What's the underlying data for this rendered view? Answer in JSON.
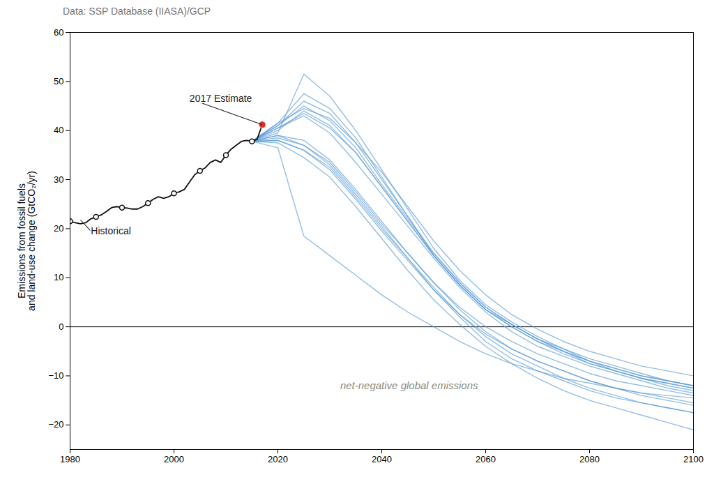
{
  "chart_data": {
    "type": "line",
    "subtitle": "Data: SSP Database (IIASA)/GCP",
    "ylabel": "Emissions from fossil fuels\nand land-use change (GtCO₂/yr)",
    "xlim": [
      1980,
      2100
    ],
    "ylim": [
      -25,
      60
    ],
    "xticks": [
      1980,
      2000,
      2020,
      2040,
      2060,
      2080,
      2100
    ],
    "yticks": [
      -20,
      -10,
      0,
      10,
      20,
      30,
      40,
      50,
      60
    ],
    "grid": false,
    "series": [
      {
        "type": "line",
        "color": "#5b9bd5",
        "x": [
          2015,
          2020,
          2025,
          2030,
          2035,
          2040,
          2045,
          2050,
          2055,
          2060,
          2065,
          2070,
          2075,
          2080,
          2085,
          2090,
          2095,
          2100
        ],
        "values": [
          37.8,
          41.5,
          44.5,
          42.5,
          37.5,
          31.5,
          24.5,
          17.5,
          11.5,
          6.5,
          2.5,
          -0.5,
          -3.0,
          -5.0,
          -6.5,
          -8.0,
          -9.0,
          -10.0
        ]
      },
      {
        "type": "line",
        "color": "#5b9bd5",
        "x": [
          2015,
          2020,
          2025,
          2030,
          2035,
          2040,
          2045,
          2050,
          2055,
          2060,
          2065,
          2070,
          2075,
          2080,
          2085,
          2090,
          2095,
          2100
        ],
        "values": [
          37.8,
          40.5,
          43.5,
          40.5,
          35.5,
          28.5,
          21.5,
          14.5,
          8.5,
          3.5,
          0.0,
          -3.0,
          -5.0,
          -7.0,
          -8.5,
          -10.0,
          -11.0,
          -12.0
        ]
      },
      {
        "type": "line",
        "color": "#5b9bd5",
        "x": [
          2015,
          2020,
          2025,
          2030,
          2035,
          2040,
          2045,
          2050,
          2055,
          2060,
          2065,
          2070,
          2075,
          2080,
          2085,
          2090,
          2095,
          2100
        ],
        "values": [
          37.8,
          39.5,
          51.5,
          47.0,
          40.0,
          32.0,
          24.0,
          16.0,
          9.5,
          4.5,
          1.0,
          -2.0,
          -4.5,
          -7.0,
          -9.0,
          -10.5,
          -11.5,
          -12.5
        ]
      },
      {
        "type": "line",
        "color": "#5b9bd5",
        "x": [
          2015,
          2020,
          2025,
          2030,
          2035,
          2040,
          2045,
          2050,
          2055,
          2060,
          2065,
          2070,
          2075,
          2080,
          2085,
          2090,
          2095,
          2100
        ],
        "values": [
          37.8,
          41.5,
          47.5,
          44.5,
          38.5,
          30.5,
          22.5,
          14.5,
          8.5,
          3.5,
          0.5,
          -2.5,
          -5.0,
          -7.5,
          -9.0,
          -10.5,
          -12.0,
          -13.0
        ]
      },
      {
        "type": "line",
        "color": "#5b9bd5",
        "x": [
          2015,
          2020,
          2025,
          2030,
          2035,
          2040,
          2045,
          2050,
          2055,
          2060,
          2065,
          2070,
          2075,
          2080,
          2085,
          2090,
          2095,
          2100
        ],
        "values": [
          37.8,
          41.0,
          46.0,
          43.5,
          37.5,
          30.0,
          22.5,
          15.0,
          9.0,
          4.0,
          0.5,
          -2.5,
          -4.5,
          -6.5,
          -8.0,
          -9.5,
          -11.0,
          -12.0
        ]
      },
      {
        "type": "line",
        "color": "#5b9bd5",
        "x": [
          2015,
          2020,
          2025,
          2030,
          2035,
          2040,
          2045,
          2050,
          2055,
          2060,
          2065,
          2070,
          2075,
          2080,
          2085,
          2090,
          2095,
          2100
        ],
        "values": [
          37.8,
          38.5,
          37.0,
          33.5,
          27.5,
          21.0,
          15.0,
          9.0,
          4.0,
          0.0,
          -3.0,
          -5.5,
          -7.5,
          -9.5,
          -11.0,
          -12.0,
          -13.0,
          -14.0
        ]
      },
      {
        "type": "line",
        "color": "#5b9bd5",
        "x": [
          2015,
          2020,
          2025,
          2030,
          2035,
          2040,
          2045,
          2050,
          2055,
          2060,
          2065,
          2070,
          2075,
          2080,
          2085,
          2090,
          2095,
          2100
        ],
        "values": [
          37.8,
          38.0,
          36.0,
          32.0,
          26.0,
          19.5,
          13.5,
          7.5,
          2.5,
          -1.5,
          -4.5,
          -7.0,
          -9.0,
          -11.0,
          -12.5,
          -13.5,
          -14.5,
          -15.5
        ]
      },
      {
        "type": "line",
        "color": "#5b9bd5",
        "x": [
          2015,
          2020,
          2025,
          2030,
          2035,
          2040,
          2045,
          2050,
          2055,
          2060,
          2065,
          2070,
          2075,
          2080,
          2085,
          2090,
          2095,
          2100
        ],
        "values": [
          37.8,
          40.5,
          43.0,
          39.5,
          33.5,
          27.0,
          20.5,
          14.0,
          8.0,
          3.0,
          -1.0,
          -4.0,
          -6.0,
          -8.0,
          -9.5,
          -11.0,
          -12.5,
          -13.5
        ]
      },
      {
        "type": "line",
        "color": "#5b9bd5",
        "x": [
          2015,
          2020,
          2025,
          2030,
          2035,
          2040,
          2045,
          2050,
          2055,
          2060,
          2065,
          2070,
          2075,
          2080,
          2085,
          2090,
          2095,
          2100
        ],
        "values": [
          37.8,
          39.0,
          37.0,
          33.0,
          27.0,
          20.5,
          14.0,
          7.5,
          2.0,
          -3.0,
          -6.5,
          -9.0,
          -11.0,
          -13.0,
          -14.5,
          -15.5,
          -16.5,
          -17.5
        ]
      },
      {
        "type": "line",
        "color": "#5b9bd5",
        "x": [
          2015,
          2020,
          2025,
          2030,
          2035,
          2040,
          2045,
          2050,
          2055,
          2060,
          2065,
          2070,
          2075,
          2080,
          2085,
          2090,
          2095,
          2100
        ],
        "values": [
          37.8,
          37.5,
          34.5,
          30.5,
          24.5,
          18.0,
          11.5,
          5.5,
          0.5,
          -4.0,
          -7.5,
          -10.5,
          -13.0,
          -15.0,
          -16.5,
          -18.0,
          -19.5,
          -21.0
        ]
      },
      {
        "type": "line",
        "color": "#5b9bd5",
        "x": [
          2015,
          2020,
          2025,
          2030,
          2035,
          2040,
          2045,
          2050,
          2055,
          2060,
          2065,
          2070,
          2075,
          2080,
          2085,
          2090,
          2095,
          2100
        ],
        "values": [
          37.8,
          40.0,
          44.0,
          41.0,
          35.5,
          28.5,
          21.5,
          14.5,
          8.5,
          3.5,
          0.0,
          -3.0,
          -5.5,
          -7.5,
          -9.0,
          -10.5,
          -11.5,
          -12.5
        ]
      },
      {
        "type": "line",
        "color": "#5b9bd5",
        "x": [
          2015,
          2020,
          2025,
          2030,
          2035,
          2040,
          2045,
          2050,
          2055,
          2060,
          2065,
          2070,
          2075,
          2080,
          2085,
          2090,
          2095,
          2100
        ],
        "values": [
          37.8,
          39.0,
          38.0,
          34.0,
          28.0,
          21.5,
          15.0,
          9.0,
          3.5,
          -1.0,
          -4.5,
          -7.0,
          -9.0,
          -11.0,
          -12.5,
          -14.0,
          -15.0,
          -16.0
        ]
      },
      {
        "type": "line",
        "color": "#5b9bd5",
        "x": [
          2015,
          2020,
          2025,
          2030,
          2035,
          2040,
          2045,
          2050,
          2055,
          2060,
          2065,
          2070,
          2075,
          2080,
          2085,
          2090,
          2095,
          2100
        ],
        "values": [
          37.8,
          41.0,
          45.0,
          42.0,
          36.5,
          29.0,
          22.0,
          15.0,
          9.0,
          4.0,
          0.5,
          -2.5,
          -5.0,
          -7.0,
          -8.5,
          -10.0,
          -11.0,
          -12.0
        ]
      },
      {
        "type": "line",
        "color": "#5b9bd5",
        "x": [
          2015,
          2020,
          2025,
          2030,
          2035,
          2040,
          2045,
          2050,
          2055,
          2060,
          2065,
          2070,
          2075,
          2080,
          2085,
          2090,
          2095,
          2100
        ],
        "values": [
          37.8,
          36.5,
          18.5,
          14.5,
          10.5,
          6.5,
          3.0,
          0.0,
          -3.0,
          -5.5,
          -7.5,
          -9.0,
          -10.5,
          -11.5,
          -12.5,
          -13.5,
          -14.0,
          -14.5
        ]
      },
      {
        "type": "line",
        "color": "#5b9bd5",
        "x": [
          2015,
          2020,
          2025,
          2030,
          2035,
          2040,
          2045,
          2050,
          2055,
          2060,
          2065,
          2070,
          2075,
          2080,
          2085,
          2090,
          2095,
          2100
        ],
        "values": [
          37.8,
          38.0,
          36.0,
          32.5,
          26.5,
          20.0,
          14.0,
          8.0,
          2.5,
          -2.0,
          -5.5,
          -8.0,
          -10.5,
          -12.5,
          -14.0,
          -15.5,
          -16.5,
          -17.5
        ]
      },
      {
        "type": "line",
        "color": "#111111",
        "x": [
          1980,
          1981,
          1982,
          1983,
          1984,
          1985,
          1986,
          1987,
          1988,
          1989,
          1990,
          1991,
          1992,
          1993,
          1994,
          1995,
          1996,
          1997,
          1998,
          1999,
          2000,
          2001,
          2002,
          2003,
          2004,
          2005,
          2006,
          2007,
          2008,
          2009,
          2010,
          2011,
          2012,
          2013,
          2014,
          2015,
          2016,
          2017
        ],
        "values": [
          21.5,
          21.2,
          21.0,
          21.2,
          22.0,
          22.4,
          22.8,
          23.5,
          24.3,
          24.5,
          24.3,
          24.2,
          24.0,
          24.0,
          24.5,
          25.2,
          26.0,
          26.5,
          26.2,
          26.5,
          27.2,
          27.5,
          28.0,
          29.5,
          31.0,
          31.8,
          32.4,
          33.5,
          34.0,
          33.5,
          35.0,
          36.2,
          37.0,
          37.8,
          38.0,
          37.8,
          38.2,
          41.2
        ]
      },
      {
        "type": "scatter",
        "marker": "open_circle",
        "color": "#111111",
        "x": [
          1980,
          1985,
          1990,
          1995,
          2000,
          2005,
          2010,
          2015
        ],
        "values": [
          21.5,
          22.4,
          24.3,
          25.2,
          27.2,
          31.8,
          35.0,
          37.8
        ]
      },
      {
        "type": "scatter",
        "marker": "circle",
        "color": "#e03030",
        "x": [
          2017
        ],
        "values": [
          41.2
        ]
      }
    ],
    "annotations": [
      {
        "text": "2017 Estimate",
        "x": 2003,
        "y": 46.5,
        "target": [
          2017,
          41.2
        ]
      },
      {
        "text": "Historical",
        "x": 1984,
        "y": 19.5,
        "target": [
          1982,
          21.8
        ]
      },
      {
        "text": "net-negative global emissions",
        "x": 2032,
        "y": -12
      }
    ]
  }
}
